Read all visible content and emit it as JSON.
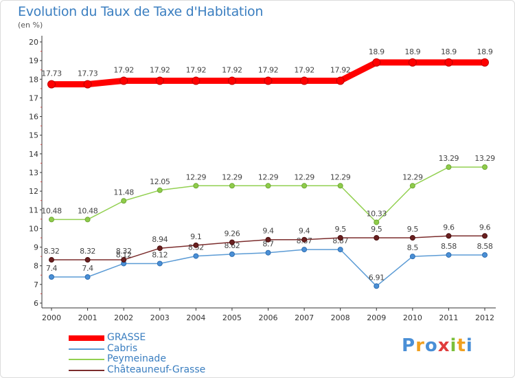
{
  "header": {
    "title": "Evolution du Taux de Taxe d'Habitation",
    "unit": "(en %)"
  },
  "logo": {
    "text": "Proxiti"
  },
  "chart_data": {
    "type": "line",
    "title": "Evolution du Taux de Taxe d'Habitation",
    "ylabel": "(en %)",
    "x": [
      "2000",
      "2001",
      "2002",
      "2003",
      "2004",
      "2005",
      "2006",
      "2007",
      "2008",
      "2009",
      "2010",
      "2011",
      "2012"
    ],
    "ylim": [
      6,
      20
    ],
    "yticks": [
      6,
      7,
      8,
      9,
      10,
      11,
      12,
      13,
      14,
      15,
      16,
      17,
      18,
      19,
      20
    ],
    "grid": false,
    "legend": "bottom",
    "series": [
      {
        "name": "GRASSE",
        "color": "#ff0000",
        "values": [
          17.73,
          17.73,
          17.92,
          17.92,
          17.92,
          17.92,
          17.92,
          17.92,
          17.92,
          18.9,
          18.9,
          18.9,
          18.9
        ],
        "labels": [
          "17.73",
          "17.73",
          "17.92",
          "17.92",
          "17.92",
          "17.92",
          "17.92",
          "17.92",
          "17.92",
          "18.9",
          "18.9",
          "18.9",
          "18.9"
        ]
      },
      {
        "name": "Cabris",
        "color": "#5b9bd5",
        "values": [
          7.4,
          7.4,
          8.12,
          8.12,
          8.52,
          8.62,
          8.7,
          8.87,
          8.87,
          6.91,
          8.5,
          8.58,
          8.58
        ],
        "labels": [
          "7.4",
          "7.4",
          "8.12",
          "8.12",
          "8.52",
          "8.62",
          "8.7",
          "8.87",
          "8.87",
          "6.91",
          "8.5",
          "8.58",
          "8.58"
        ]
      },
      {
        "name": "Peymeinade",
        "color": "#92d050",
        "values": [
          10.48,
          10.48,
          11.48,
          12.05,
          12.29,
          12.29,
          12.29,
          12.29,
          12.29,
          10.33,
          12.29,
          13.29,
          13.29
        ],
        "labels": [
          "10.48",
          "10.48",
          "11.48",
          "12.05",
          "12.29",
          "12.29",
          "12.29",
          "12.29",
          "12.29",
          "10.33",
          "12.29",
          "13.29",
          "13.29"
        ]
      },
      {
        "name": "Châteauneuf-Grasse",
        "color": "#7b2c2c",
        "values": [
          8.32,
          8.32,
          8.32,
          8.94,
          9.1,
          9.26,
          9.4,
          9.4,
          9.5,
          9.5,
          9.5,
          9.6,
          9.6
        ],
        "labels": [
          "8.32",
          "8.32",
          "8.32",
          "8.94",
          "9.1",
          "9.26",
          "9.4",
          "9.4",
          "9.5",
          "9.5",
          "9.5",
          "9.6",
          "9.6"
        ]
      }
    ]
  }
}
